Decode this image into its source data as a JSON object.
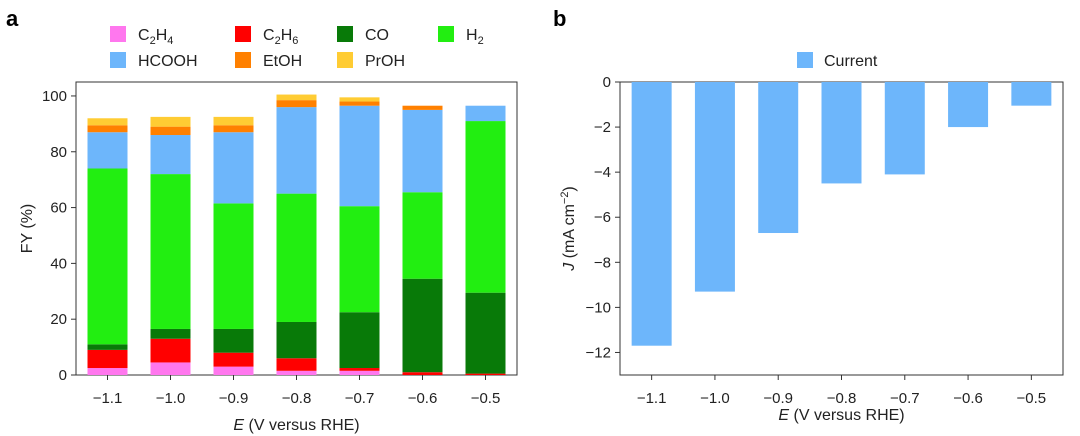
{
  "colors": {
    "C2H4": "#ff77ee",
    "C2H6": "#ff0000",
    "CO": "#087a08",
    "H2": "#22ee11",
    "HCOOH": "#6db6fb",
    "EtOH": "#ff8000",
    "PrOH": "#ffcc33",
    "Current": "#6db6fb"
  },
  "chart_data": [
    {
      "panel": "a",
      "type": "bar",
      "stacked": true,
      "xlabel_italic": "E",
      "xlabel_rest": " (V versus RHE)",
      "ylabel": "FY (%)",
      "ylim": [
        0,
        105
      ],
      "yticks": [
        0,
        20,
        40,
        60,
        80,
        100
      ],
      "categories": [
        "−1.1",
        "−1.0",
        "−0.9",
        "−0.8",
        "−0.7",
        "−0.6",
        "−0.5"
      ],
      "series": [
        {
          "name": "C2H4",
          "values": [
            2.5,
            4.5,
            3,
            1.5,
            1.5,
            0,
            0
          ]
        },
        {
          "name": "C2H6",
          "values": [
            6.5,
            8.5,
            5,
            4.5,
            1,
            1,
            0.5
          ]
        },
        {
          "name": "CO",
          "values": [
            2,
            3.5,
            8.5,
            13,
            20,
            33.5,
            29
          ]
        },
        {
          "name": "H2",
          "values": [
            63,
            55.5,
            45,
            46,
            38,
            31,
            61.5
          ]
        },
        {
          "name": "HCOOH",
          "values": [
            13,
            14,
            25.5,
            31,
            36,
            29.5,
            5.5
          ]
        },
        {
          "name": "EtOH",
          "values": [
            2.5,
            3,
            2.5,
            2.5,
            1.5,
            1.5,
            0
          ]
        },
        {
          "name": "PrOH",
          "values": [
            2.5,
            3.5,
            3,
            2,
            1.5,
            0,
            0
          ]
        }
      ],
      "legend": [
        {
          "key": "C2H4",
          "base": "C",
          "sub1": "2",
          "mid": "H",
          "sub2": "4"
        },
        {
          "key": "C2H6",
          "base": "C",
          "sub1": "2",
          "mid": "H",
          "sub2": "6"
        },
        {
          "key": "CO",
          "base": "CO",
          "sub1": "",
          "mid": "",
          "sub2": ""
        },
        {
          "key": "H2",
          "base": "H",
          "sub1": "2",
          "mid": "",
          "sub2": ""
        },
        {
          "key": "HCOOH",
          "base": "HCOOH",
          "sub1": "",
          "mid": "",
          "sub2": ""
        },
        {
          "key": "EtOH",
          "base": "EtOH",
          "sub1": "",
          "mid": "",
          "sub2": ""
        },
        {
          "key": "PrOH",
          "base": "PrOH",
          "sub1": "",
          "mid": "",
          "sub2": ""
        }
      ],
      "legend_position": "top"
    },
    {
      "panel": "b",
      "type": "bar",
      "xlabel_italic": "E",
      "xlabel_rest": " (V versus RHE)",
      "ylabel_italic": "J",
      "ylabel_rest": " (mA cm",
      "ylabel_sup": "−2",
      "ylabel_end": ")",
      "ylim": [
        -13,
        0
      ],
      "yticks": [
        0,
        -2,
        -4,
        -6,
        -8,
        -10,
        -12
      ],
      "ytick_labels": [
        "0",
        "−2",
        "−4",
        "−6",
        "−8",
        "−10",
        "−12"
      ],
      "categories": [
        "−1.1",
        "−1.0",
        "−0.9",
        "−0.8",
        "−0.7",
        "−0.6",
        "−0.5"
      ],
      "series": [
        {
          "name": "Current",
          "values": [
            -11.7,
            -9.3,
            -6.7,
            -4.5,
            -4.1,
            -2.0,
            -1.05
          ]
        }
      ],
      "legend_position": "top"
    }
  ],
  "panel_labels": {
    "a": "a",
    "b": "b"
  }
}
